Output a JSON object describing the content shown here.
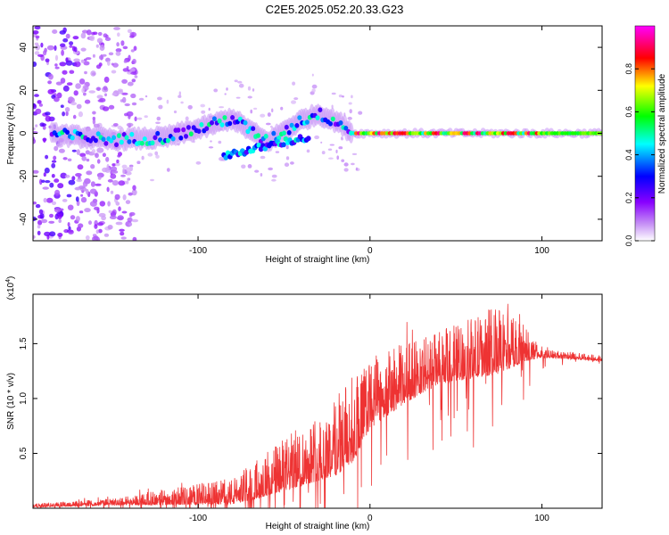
{
  "title": "C2E5.2025.052.20.33.G23",
  "chart_data": [
    {
      "type": "heatmap",
      "name": "doppler-spectrogram",
      "xlabel": "Height of straight line (km)",
      "ylabel": "Frequency (Hz)",
      "xlim": [
        -196,
        135
      ],
      "ylim": [
        -50,
        50
      ],
      "xticks": [
        -100,
        0,
        100
      ],
      "xtick_labels": [
        "-100",
        "0",
        "100"
      ],
      "yticks": [
        -40,
        -20,
        0,
        20,
        40
      ],
      "ytick_labels": [
        "-40",
        "-20",
        "0",
        "20",
        "40"
      ],
      "colorbar": {
        "label": "Normalized spectral amplitude",
        "range": [
          0.0,
          1.0
        ],
        "ticks": [
          0.0,
          0.2,
          0.4,
          0.6,
          0.8
        ],
        "tick_labels": [
          "0.0",
          "0.2",
          "0.4",
          "0.6",
          "0.8"
        ],
        "stops": [
          "#ffffff",
          "#c58ef5",
          "#8800ff",
          "#0000ff",
          "#00ffff",
          "#00ff00",
          "#ffff00",
          "#ff0000",
          "#ff00ff"
        ]
      },
      "ridge": [
        {
          "x": -190,
          "f": 0
        },
        {
          "x": -150,
          "f": -3
        },
        {
          "x": -120,
          "f": -2
        },
        {
          "x": -100,
          "f": 2
        },
        {
          "x": -80,
          "f": 7
        },
        {
          "x": -60,
          "f": -4
        },
        {
          "x": -40,
          "f": 6
        },
        {
          "x": -30,
          "f": 9
        },
        {
          "x": -18,
          "f": 5
        },
        {
          "x": -10,
          "f": 0
        },
        {
          "x": 0,
          "f": 0
        },
        {
          "x": 50,
          "f": 0
        },
        {
          "x": 100,
          "f": 0
        },
        {
          "x": 135,
          "f": 0
        }
      ],
      "secondary_branch": [
        {
          "x": -85,
          "f": -10
        },
        {
          "x": -70,
          "f": -8
        },
        {
          "x": -50,
          "f": -4
        },
        {
          "x": -35,
          "f": -2
        }
      ]
    },
    {
      "type": "line",
      "name": "snr-profile",
      "xlabel": "Height of straight line (km)",
      "ylabel": "SNR (10 * v/v)",
      "scale_label": "(x10",
      "scale_exponent": "4",
      "xlim": [
        -196,
        135
      ],
      "ylim": [
        0,
        1.95
      ],
      "xticks": [
        -100,
        0,
        100
      ],
      "xtick_labels": [
        "-100",
        "0",
        "100"
      ],
      "yticks": [
        0.5,
        1.0,
        1.5
      ],
      "ytick_labels": [
        "0.5",
        "1.0",
        "1.5"
      ],
      "color": "#ee3333",
      "envelope": [
        {
          "x": -196,
          "base": 0.02,
          "amp": 0.02
        },
        {
          "x": -150,
          "base": 0.05,
          "amp": 0.04
        },
        {
          "x": -100,
          "base": 0.1,
          "amp": 0.12
        },
        {
          "x": -80,
          "base": 0.12,
          "amp": 0.15
        },
        {
          "x": -60,
          "base": 0.25,
          "amp": 0.25
        },
        {
          "x": -40,
          "base": 0.4,
          "amp": 0.35
        },
        {
          "x": -20,
          "base": 0.55,
          "amp": 0.45
        },
        {
          "x": -10,
          "base": 0.7,
          "amp": 0.5
        },
        {
          "x": 0,
          "base": 0.95,
          "amp": 0.4
        },
        {
          "x": 20,
          "base": 1.15,
          "amp": 0.35
        },
        {
          "x": 40,
          "base": 1.3,
          "amp": 0.3
        },
        {
          "x": 60,
          "base": 1.38,
          "amp": 0.35
        },
        {
          "x": 75,
          "base": 1.45,
          "amp": 0.4
        },
        {
          "x": 90,
          "base": 1.45,
          "amp": 0.2
        },
        {
          "x": 100,
          "base": 1.4,
          "amp": 0.05
        },
        {
          "x": 135,
          "base": 1.36,
          "amp": 0.03
        }
      ]
    }
  ]
}
